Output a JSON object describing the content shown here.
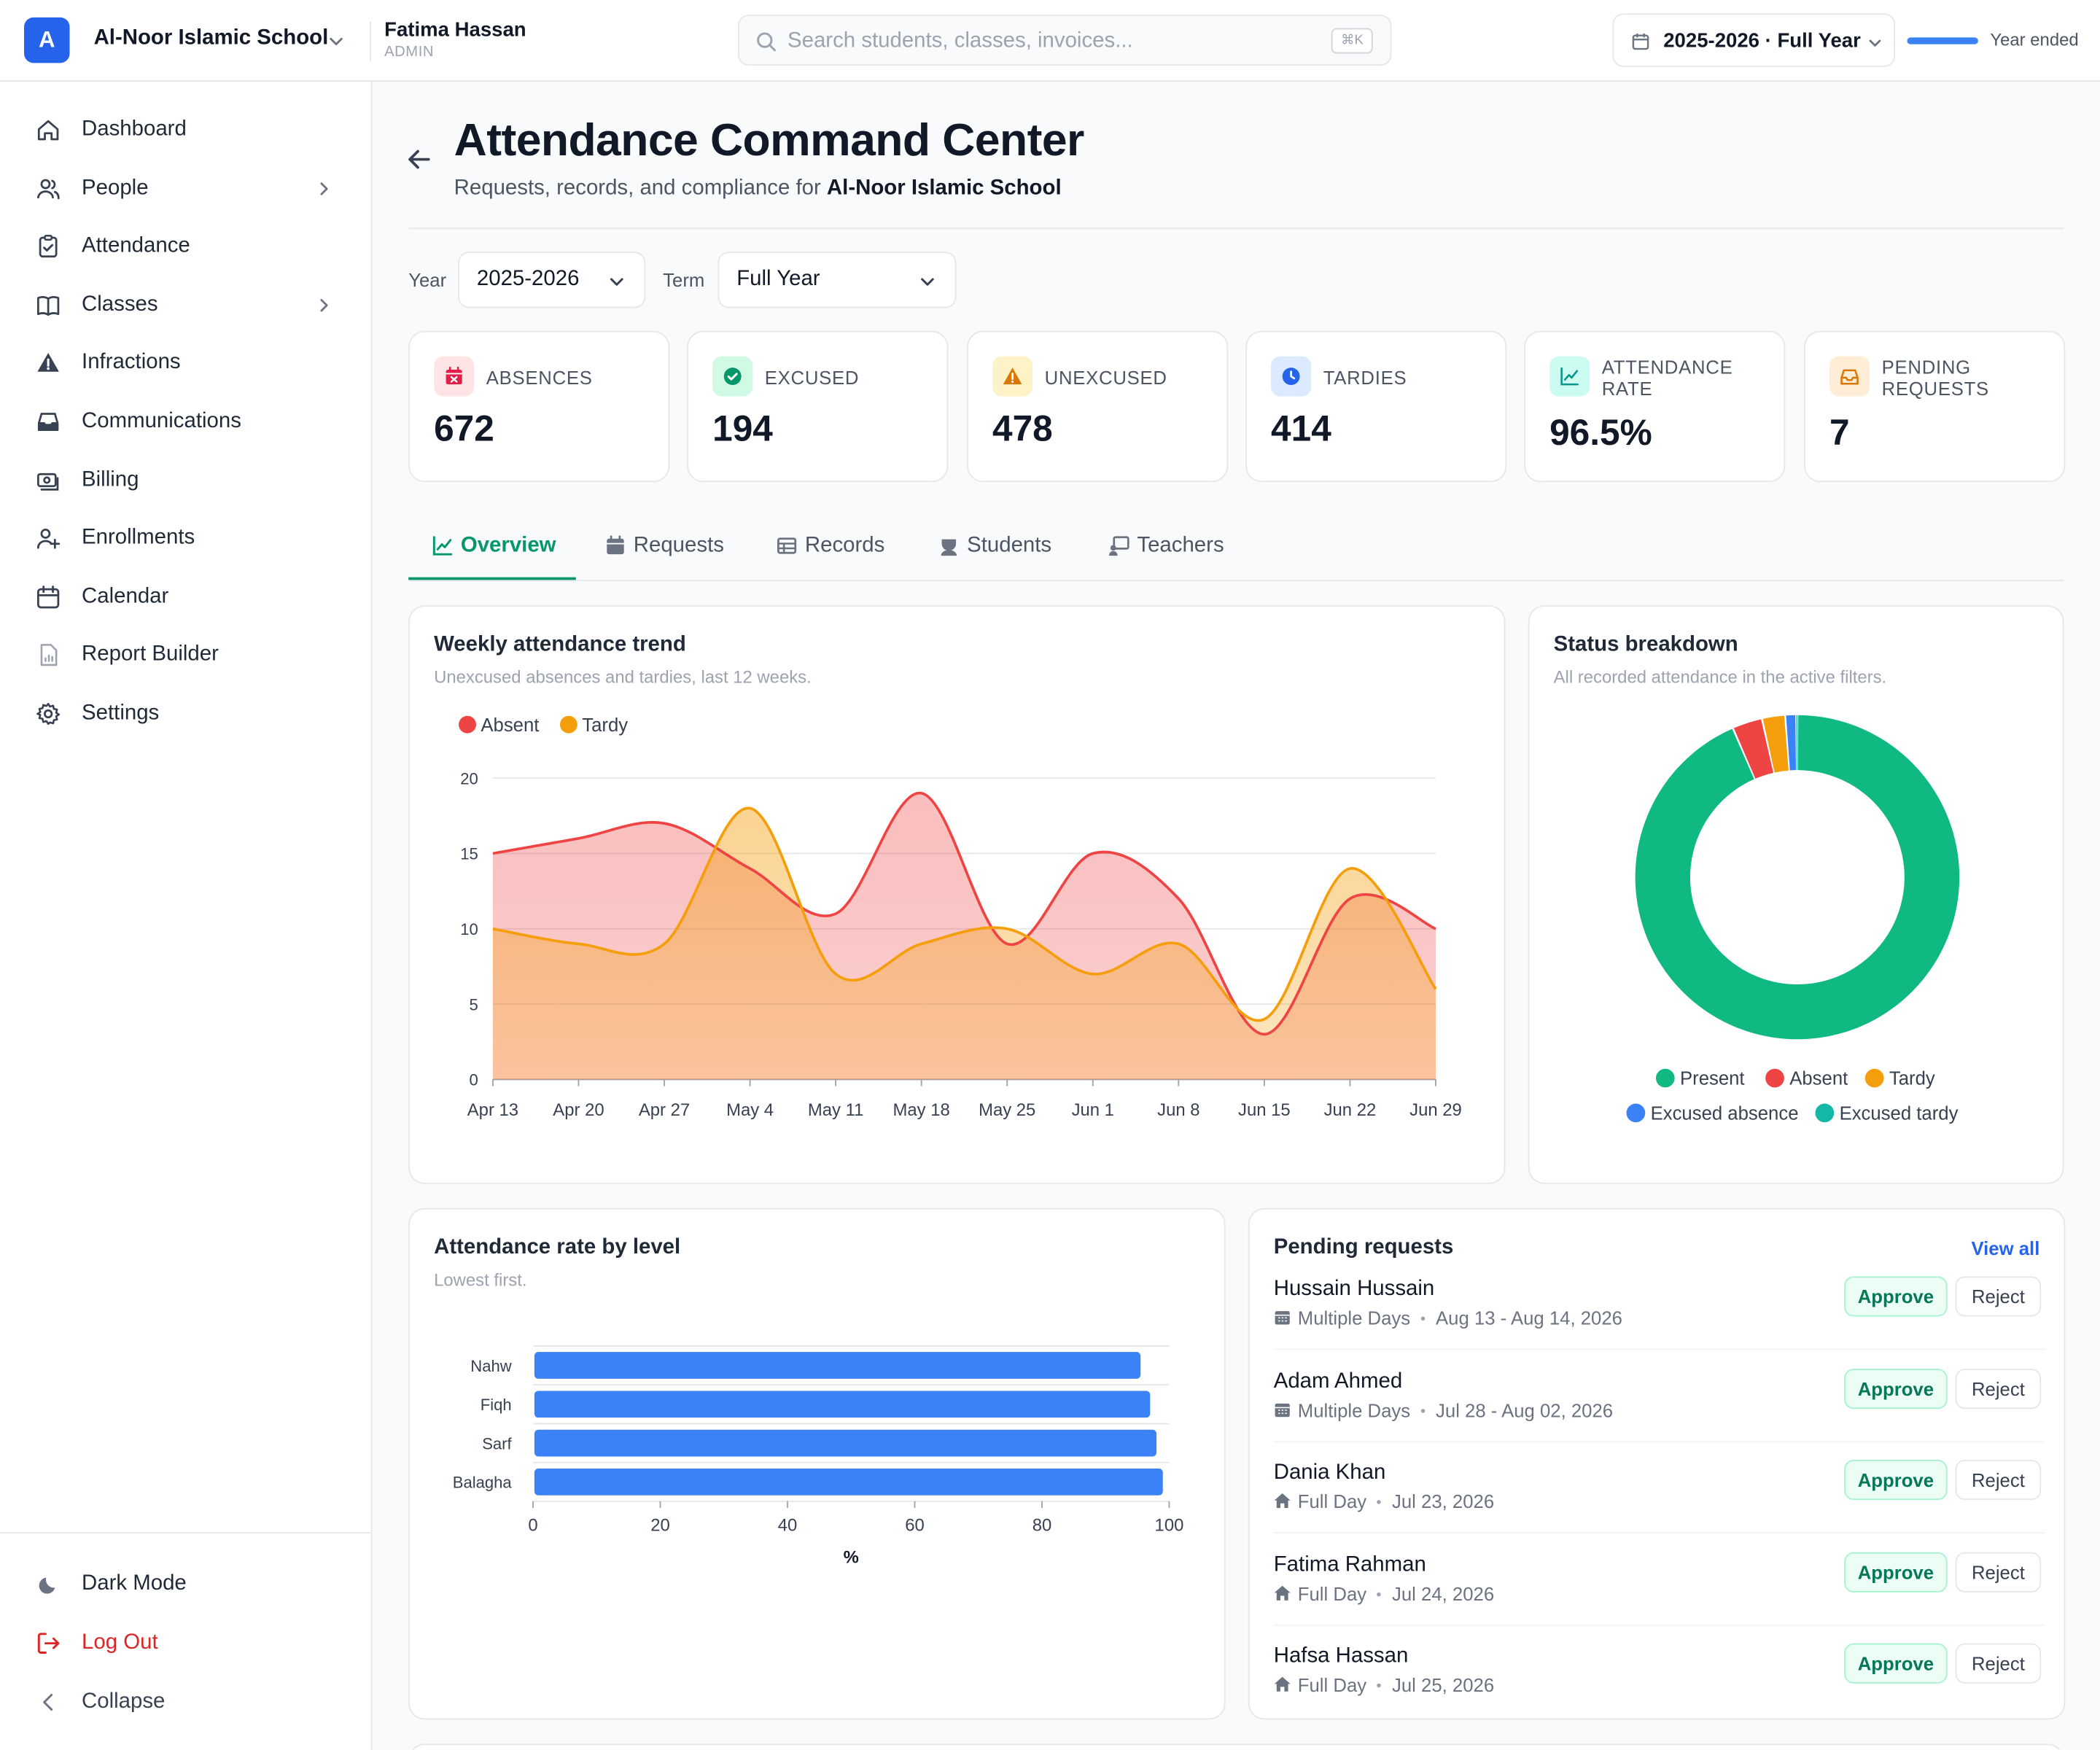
{
  "header": {
    "logo_letter": "A",
    "school_name": "Al-Noor Islamic School",
    "user_name": "Fatima Hassan",
    "user_role": "ADMIN",
    "search_placeholder": "Search students, classes, invoices...",
    "search_shortcut": "⌘K",
    "year_selector": "2025-2026 · Full Year",
    "year_progress": 1.0,
    "year_status": "Year ended"
  },
  "sidebar": {
    "items": [
      {
        "label": "Dashboard",
        "icon": "home-icon",
        "has_children": false
      },
      {
        "label": "People",
        "icon": "users-icon",
        "has_children": true
      },
      {
        "label": "Attendance",
        "icon": "clipboard-check-icon",
        "has_children": false
      },
      {
        "label": "Classes",
        "icon": "book-open-icon",
        "has_children": true
      },
      {
        "label": "Infractions",
        "icon": "warning-icon",
        "has_children": false
      },
      {
        "label": "Communications",
        "icon": "inbox-icon",
        "has_children": false
      },
      {
        "label": "Billing",
        "icon": "cash-icon",
        "has_children": false
      },
      {
        "label": "Enrollments",
        "icon": "user-plus-icon",
        "has_children": false
      },
      {
        "label": "Calendar",
        "icon": "calendar-icon",
        "has_children": false
      },
      {
        "label": "Report Builder",
        "icon": "document-chart-icon",
        "has_children": false
      },
      {
        "label": "Settings",
        "icon": "gear-icon",
        "has_children": false
      }
    ],
    "dark_mode": "Dark Mode",
    "logout": "Log Out",
    "collapse": "Collapse"
  },
  "page": {
    "title": "Attendance Command Center",
    "subtitle_prefix": "Requests, records, and compliance for ",
    "subtitle_school": "Al-Noor Islamic School"
  },
  "filters": {
    "year_label": "Year",
    "year_value": "2025-2026",
    "term_label": "Term",
    "term_value": "Full Year"
  },
  "kpis": [
    {
      "label": "ABSENCES",
      "value": "672",
      "color": "#e11d48",
      "bg": "#ffe4e6"
    },
    {
      "label": "EXCUSED",
      "value": "194",
      "color": "#059669",
      "bg": "#d1fae5"
    },
    {
      "label": "UNEXCUSED",
      "value": "478",
      "color": "#d97706",
      "bg": "#fef3c7"
    },
    {
      "label": "TARDIES",
      "value": "414",
      "color": "#2563eb",
      "bg": "#dbeafe"
    },
    {
      "label": "ATTENDANCE RATE",
      "value": "96.5%",
      "color": "#0d9488",
      "bg": "#ccfbf1"
    },
    {
      "label": "PENDING REQUESTS",
      "value": "7",
      "color": "#d97706",
      "bg": "#ffedd5"
    }
  ],
  "tabs": [
    {
      "label": "Overview",
      "icon": "chart-line-icon",
      "active": true
    },
    {
      "label": "Requests",
      "icon": "calendar-icon",
      "active": false
    },
    {
      "label": "Records",
      "icon": "table-icon",
      "active": false
    },
    {
      "label": "Students",
      "icon": "student-icon",
      "active": false
    },
    {
      "label": "Teachers",
      "icon": "teacher-icon",
      "active": false
    }
  ],
  "weekly_card": {
    "title": "Weekly attendance trend",
    "subtitle": "Unexcused absences and tardies, last 12 weeks."
  },
  "status_card": {
    "title": "Status breakdown",
    "subtitle": "All recorded attendance in the active filters."
  },
  "level_card": {
    "title": "Attendance rate by level",
    "subtitle": "Lowest first."
  },
  "chart_data": [
    {
      "type": "area",
      "categories": [
        "Apr 13",
        "Apr 20",
        "Apr 27",
        "May 4",
        "May 11",
        "May 18",
        "May 25",
        "Jun 1",
        "Jun 8",
        "Jun 15",
        "Jun 22",
        "Jun 29"
      ],
      "series": [
        {
          "name": "Absent",
          "color": "#ef4444",
          "values": [
            15,
            16,
            17,
            14,
            11,
            19,
            9,
            15,
            12,
            3,
            12,
            10
          ]
        },
        {
          "name": "Tardy",
          "color": "#f59e0b",
          "values": [
            10,
            9,
            9,
            18,
            7,
            9,
            10,
            7,
            9,
            4,
            14,
            6
          ]
        }
      ],
      "ylim": [
        0,
        20
      ],
      "yticks": [
        0,
        5,
        10,
        15,
        20
      ],
      "grid": true,
      "legend": "top-left"
    },
    {
      "type": "pie",
      "donut": true,
      "labels": [
        "Present",
        "Absent",
        "Tardy",
        "Excused absence",
        "Excused tardy"
      ],
      "values": [
        93.5,
        3.0,
        2.3,
        1.1,
        0.1
      ],
      "colors": [
        "#10b981",
        "#ef4444",
        "#f59e0b",
        "#3b82f6",
        "#14b8a6"
      ],
      "legend": "bottom"
    },
    {
      "type": "bar",
      "orientation": "horizontal",
      "categories": [
        "Nahw",
        "Fiqh",
        "Sarf",
        "Balagha"
      ],
      "values": [
        95.5,
        97,
        98,
        99
      ],
      "color": "#3b82f6",
      "xlim": [
        0,
        100
      ],
      "xticks": [
        0,
        20,
        40,
        60,
        80,
        100
      ],
      "xlabel": "%"
    }
  ],
  "pending": {
    "title": "Pending requests",
    "view_all": "View all",
    "approve_label": "Approve",
    "reject_label": "Reject",
    "items": [
      {
        "name": "Hussain Hussain",
        "type": "Multiple Days",
        "type_icon": "calendar-icon",
        "dates": "Aug 13 - Aug 14, 2026"
      },
      {
        "name": "Adam Ahmed",
        "type": "Multiple Days",
        "type_icon": "calendar-icon",
        "dates": "Jul 28 - Aug 02, 2026"
      },
      {
        "name": "Dania Khan",
        "type": "Full Day",
        "type_icon": "home-icon",
        "dates": "Jul 23, 2026"
      },
      {
        "name": "Fatima Rahman",
        "type": "Full Day",
        "type_icon": "home-icon",
        "dates": "Jul 24, 2026"
      },
      {
        "name": "Hafsa Hassan",
        "type": "Full Day",
        "type_icon": "home-icon",
        "dates": "Jul 25, 2026"
      }
    ]
  }
}
